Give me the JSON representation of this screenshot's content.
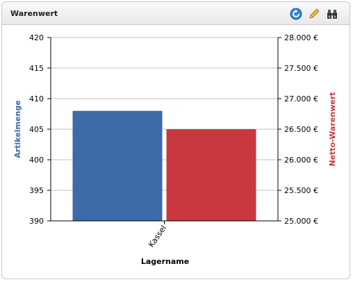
{
  "widget": {
    "title": "Warenwert",
    "icons": [
      "refresh-icon",
      "edit-pencil-icon",
      "binoculars-icon"
    ]
  },
  "chart_data": {
    "type": "bar",
    "categories": [
      "Kassel"
    ],
    "series": [
      {
        "name": "Artikelmenge",
        "axis": "left",
        "color": "#3d6aa8",
        "values": [
          408
        ]
      },
      {
        "name": "Netto-Warenwert",
        "axis": "right",
        "color": "#c8383e",
        "values": [
          26500
        ]
      }
    ],
    "xlabel": "Lagername",
    "ylabel_left": "Artikelmenge",
    "ylabel_right": "Netto-Warenwert",
    "ylim_left": [
      390,
      420
    ],
    "ylim_right": [
      25000,
      28000
    ],
    "yticks_left": [
      "420",
      "415",
      "410",
      "405",
      "400",
      "395",
      "390"
    ],
    "yticks_right": [
      "28.000 €",
      "27.500 €",
      "27.000 €",
      "26.500 €",
      "26.000 €",
      "25.500 €",
      "25.000 €"
    ],
    "grid": true,
    "left_axis_color": "#3d6aa8",
    "right_axis_color": "#c8383e"
  }
}
